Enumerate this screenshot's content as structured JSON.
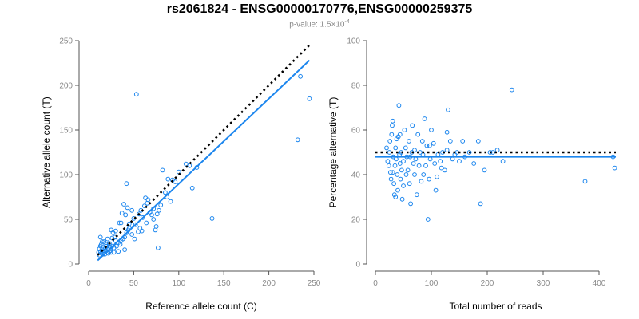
{
  "title": "rs2061824 - ENSG00000170776,ENSG00000259375",
  "subtitle": {
    "prefix": "p-value: 1.5×10",
    "exponent": "-4"
  },
  "colors": {
    "points": "#1c86ee",
    "fit_line": "#1c86ee",
    "reference_line": "#000000",
    "tick_text": "#888888"
  },
  "chart_data": [
    {
      "type": "scatter",
      "xlabel": "Reference allele count (C)",
      "ylabel": "Alternative allele count (T)",
      "xlim": [
        0,
        250
      ],
      "ylim": [
        0,
        250
      ],
      "xticks": [
        0,
        50,
        100,
        150,
        200,
        250
      ],
      "yticks": [
        0,
        50,
        100,
        150,
        200,
        250
      ],
      "grid": false,
      "reference_line": {
        "style": "dotted",
        "x": [
          10,
          245
        ],
        "y": [
          10,
          245
        ]
      },
      "fit_line": {
        "style": "solid",
        "x": [
          10,
          245
        ],
        "y": [
          4,
          228
        ]
      },
      "points": [
        [
          12,
          10
        ],
        [
          13,
          14
        ],
        [
          14,
          12
        ],
        [
          15,
          16
        ],
        [
          16,
          18
        ],
        [
          17,
          13
        ],
        [
          18,
          11
        ],
        [
          19,
          15
        ],
        [
          20,
          20
        ],
        [
          21,
          17
        ],
        [
          22,
          12
        ],
        [
          23,
          14
        ],
        [
          24,
          19
        ],
        [
          25,
          13
        ],
        [
          13,
          20
        ],
        [
          14,
          22
        ],
        [
          15,
          25
        ],
        [
          16,
          11
        ],
        [
          18,
          17
        ],
        [
          20,
          22
        ],
        [
          22,
          16
        ],
        [
          24,
          15
        ],
        [
          26,
          20
        ],
        [
          28,
          18
        ],
        [
          12,
          17
        ],
        [
          11,
          13
        ],
        [
          13,
          30
        ],
        [
          17,
          25
        ],
        [
          19,
          20
        ],
        [
          21,
          28
        ],
        [
          23,
          23
        ],
        [
          25,
          38
        ],
        [
          27,
          35
        ],
        [
          29,
          30
        ],
        [
          30,
          26
        ],
        [
          31,
          20
        ],
        [
          33,
          14
        ],
        [
          35,
          22
        ],
        [
          36,
          26
        ],
        [
          38,
          28
        ],
        [
          40,
          30
        ],
        [
          42,
          35
        ],
        [
          44,
          38
        ],
        [
          45,
          40
        ],
        [
          41,
          55
        ],
        [
          43,
          63
        ],
        [
          37,
          57
        ],
        [
          39,
          67
        ],
        [
          42,
          90
        ],
        [
          48,
          60
        ],
        [
          50,
          51
        ],
        [
          52,
          44
        ],
        [
          55,
          36
        ],
        [
          57,
          40
        ],
        [
          56,
          56
        ],
        [
          58,
          60
        ],
        [
          60,
          52
        ],
        [
          62,
          65
        ],
        [
          63,
          74
        ],
        [
          65,
          68
        ],
        [
          66,
          72
        ],
        [
          68,
          58
        ],
        [
          70,
          55
        ],
        [
          72,
          62
        ],
        [
          72,
          50
        ],
        [
          74,
          38
        ],
        [
          75,
          42
        ],
        [
          76,
          56
        ],
        [
          78,
          60
        ],
        [
          80,
          66
        ],
        [
          82,
          105
        ],
        [
          85,
          80
        ],
        [
          87,
          75
        ],
        [
          88,
          95
        ],
        [
          91,
          70
        ],
        [
          93,
          94
        ],
        [
          96,
          92
        ],
        [
          100,
          103
        ],
        [
          108,
          112
        ],
        [
          112,
          110
        ],
        [
          115,
          85
        ],
        [
          120,
          108
        ],
        [
          137,
          51
        ],
        [
          53,
          190
        ],
        [
          232,
          139
        ],
        [
          235,
          210
        ],
        [
          245,
          185
        ],
        [
          30,
          37
        ],
        [
          33,
          24
        ],
        [
          36,
          46
        ],
        [
          40,
          16
        ],
        [
          45,
          45
        ],
        [
          48,
          33
        ],
        [
          51,
          28
        ],
        [
          59,
          37
        ],
        [
          64,
          46
        ],
        [
          77,
          18
        ],
        [
          26,
          29
        ],
        [
          28,
          13
        ],
        [
          34,
          46
        ]
      ]
    },
    {
      "type": "scatter",
      "xlabel": "Total number of reads",
      "ylabel": "Percentage alternative (T)",
      "xlim": [
        0,
        430
      ],
      "ylim": [
        0,
        100
      ],
      "xticks": [
        0,
        100,
        200,
        300,
        400
      ],
      "yticks": [
        0,
        20,
        40,
        60,
        80,
        100
      ],
      "grid": false,
      "reference_line": {
        "style": "dotted",
        "x": [
          0,
          430
        ],
        "y": [
          50,
          50
        ]
      },
      "fit_line": {
        "style": "solid",
        "x": [
          0,
          430
        ],
        "y": [
          48,
          48
        ]
      },
      "points": [
        [
          20,
          52
        ],
        [
          22,
          46
        ],
        [
          24,
          44
        ],
        [
          25,
          50
        ],
        [
          26,
          55
        ],
        [
          27,
          41
        ],
        [
          28,
          38
        ],
        [
          29,
          58
        ],
        [
          30,
          62
        ],
        [
          31,
          64
        ],
        [
          32,
          48
        ],
        [
          33,
          36
        ],
        [
          34,
          31
        ],
        [
          35,
          44
        ],
        [
          36,
          52
        ],
        [
          37,
          47
        ],
        [
          38,
          56
        ],
        [
          39,
          40
        ],
        [
          40,
          33
        ],
        [
          41,
          57
        ],
        [
          42,
          71
        ],
        [
          43,
          49
        ],
        [
          44,
          45
        ],
        [
          45,
          38
        ],
        [
          46,
          50
        ],
        [
          47,
          42
        ],
        [
          48,
          29
        ],
        [
          50,
          46
        ],
        [
          52,
          60
        ],
        [
          54,
          52
        ],
        [
          56,
          48
        ],
        [
          58,
          42
        ],
        [
          60,
          55
        ],
        [
          61,
          36
        ],
        [
          63,
          27
        ],
        [
          65,
          50
        ],
        [
          66,
          62
        ],
        [
          68,
          45
        ],
        [
          70,
          40
        ],
        [
          72,
          47
        ],
        [
          74,
          31
        ],
        [
          76,
          58
        ],
        [
          78,
          44
        ],
        [
          80,
          50
        ],
        [
          82,
          37
        ],
        [
          84,
          55
        ],
        [
          86,
          40
        ],
        [
          88,
          65
        ],
        [
          90,
          44
        ],
        [
          92,
          53
        ],
        [
          94,
          20
        ],
        [
          96,
          38
        ],
        [
          98,
          47
        ],
        [
          100,
          60
        ],
        [
          104,
          54
        ],
        [
          106,
          45
        ],
        [
          108,
          33
        ],
        [
          110,
          39
        ],
        [
          112,
          49
        ],
        [
          116,
          46
        ],
        [
          120,
          50
        ],
        [
          124,
          42
        ],
        [
          128,
          59
        ],
        [
          130,
          69
        ],
        [
          134,
          55
        ],
        [
          138,
          47
        ],
        [
          142,
          49
        ],
        [
          146,
          50
        ],
        [
          150,
          46
        ],
        [
          156,
          55
        ],
        [
          160,
          48
        ],
        [
          168,
          50
        ],
        [
          176,
          45
        ],
        [
          184,
          55
        ],
        [
          188,
          27
        ],
        [
          195,
          42
        ],
        [
          205,
          50
        ],
        [
          210,
          50
        ],
        [
          218,
          51
        ],
        [
          228,
          46
        ],
        [
          244,
          78
        ],
        [
          375,
          37
        ],
        [
          425,
          48
        ],
        [
          428,
          43
        ],
        [
          31,
          41
        ],
        [
          36,
          30
        ],
        [
          44,
          58
        ],
        [
          50,
          35
        ],
        [
          55,
          40
        ],
        [
          62,
          48
        ],
        [
          70,
          51
        ],
        [
          85,
          49
        ],
        [
          97,
          53
        ],
        [
          118,
          43
        ],
        [
          128,
          51
        ]
      ]
    }
  ]
}
